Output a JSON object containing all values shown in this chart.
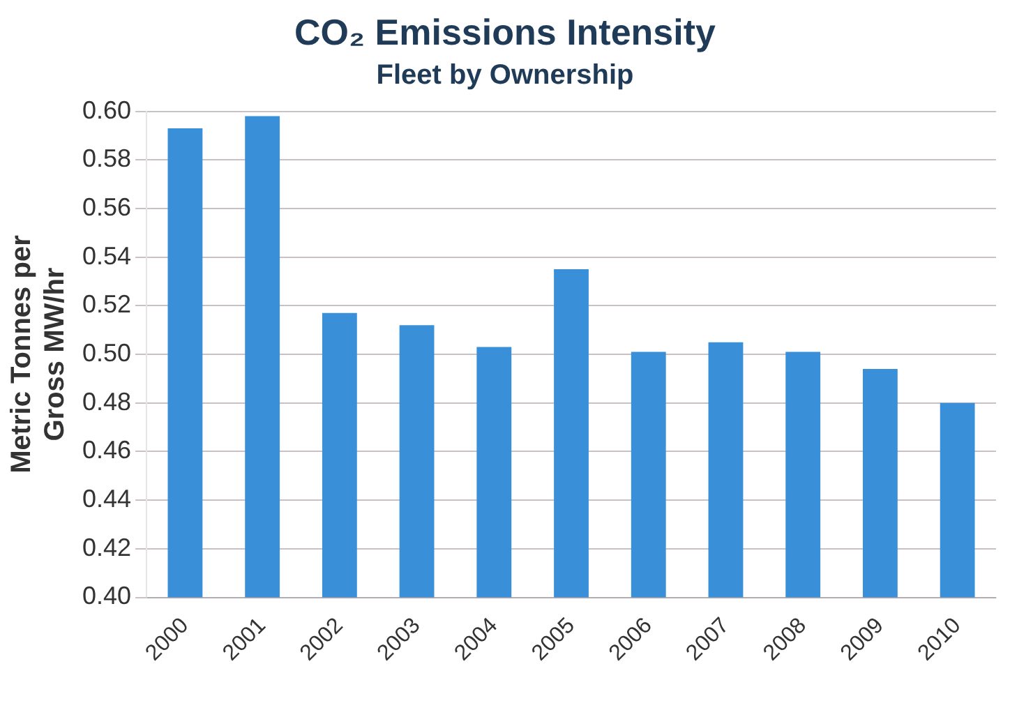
{
  "chart_data": {
    "type": "bar",
    "title": "CO₂ Emissions Intensity",
    "subtitle": "Fleet by Ownership",
    "ylabel": "Metric Tonnes per Gross MW/hr",
    "categories": [
      "2000",
      "2001",
      "2002",
      "2003",
      "2004",
      "2005",
      "2006",
      "2007",
      "2008",
      "2009",
      "2010"
    ],
    "values": [
      0.593,
      0.598,
      0.517,
      0.512,
      0.503,
      0.535,
      0.501,
      0.505,
      0.501,
      0.494,
      0.48
    ],
    "color": "#3a8fd9",
    "ylim": [
      0.4,
      0.6
    ],
    "yticks": [
      {
        "value": 0.4,
        "label": "0.40"
      },
      {
        "value": 0.42,
        "label": "0.42"
      },
      {
        "value": 0.44,
        "label": "0.44"
      },
      {
        "value": 0.46,
        "label": "0.46"
      },
      {
        "value": 0.48,
        "label": "0.48"
      },
      {
        "value": 0.5,
        "label": "0.50"
      },
      {
        "value": 0.52,
        "label": "0.52"
      },
      {
        "value": 0.54,
        "label": "0.54"
      },
      {
        "value": 0.56,
        "label": "0.56"
      },
      {
        "value": 0.58,
        "label": "0.58"
      },
      {
        "value": 0.6,
        "label": "0.60"
      }
    ],
    "grid": "y",
    "legend": false
  }
}
